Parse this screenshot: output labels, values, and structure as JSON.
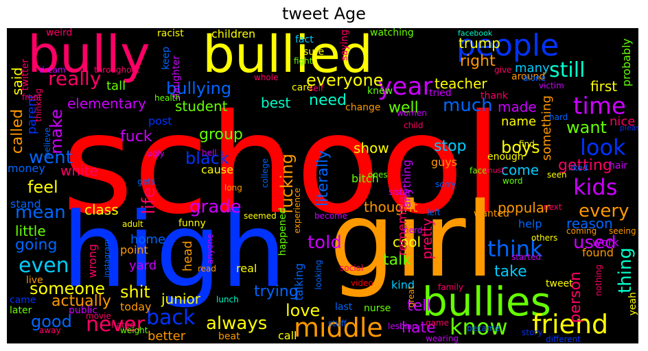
{
  "title": "tweet Age",
  "words": [
    {
      "t": "school",
      "c": "#ff0000"
    },
    {
      "t": "high",
      "c": "#0033ff"
    },
    {
      "t": "girl",
      "c": "#ff9900"
    },
    {
      "t": "bullied",
      "c": "#ffff00"
    },
    {
      "t": "bully",
      "c": "#ff0066"
    },
    {
      "t": "bullies",
      "c": "#66ff00"
    },
    {
      "t": "people",
      "c": "#0033ff"
    },
    {
      "t": "friend",
      "c": "#ffff00"
    },
    {
      "t": "middle",
      "c": "#ff9900"
    },
    {
      "t": "year",
      "c": "#cc00ff"
    },
    {
      "t": "time",
      "c": "#cc00ff"
    },
    {
      "t": "know",
      "c": "#66ff00"
    },
    {
      "t": "never",
      "c": "#ff0066"
    },
    {
      "t": "back",
      "c": "#0033ff"
    },
    {
      "t": "think",
      "c": "#0066ff"
    },
    {
      "t": "kids",
      "c": "#cc00ff"
    },
    {
      "t": "look",
      "c": "#0033ff"
    },
    {
      "t": "really",
      "c": "#ff0066"
    },
    {
      "t": "still",
      "c": "#00ffcc"
    },
    {
      "t": "bullying",
      "c": "#0066ff"
    },
    {
      "t": "even",
      "c": "#00ccff"
    },
    {
      "t": "mean",
      "c": "#0066ff"
    },
    {
      "t": "grade",
      "c": "#cc00ff"
    },
    {
      "t": "told",
      "c": "#cc00ff"
    },
    {
      "t": "want",
      "c": "#66ff00"
    },
    {
      "t": "every",
      "c": "#ff9900"
    },
    {
      "t": "always",
      "c": "#ffff00"
    },
    {
      "t": "someone",
      "c": "#ffff00"
    },
    {
      "t": "good",
      "c": "#0066ff"
    },
    {
      "t": "everyone",
      "c": "#ffff00"
    },
    {
      "t": "thing",
      "c": "#00ffcc"
    },
    {
      "t": "make",
      "c": "#cc00ff"
    },
    {
      "t": "went",
      "c": "#0066ff"
    },
    {
      "t": "feel",
      "c": "#ffff00"
    },
    {
      "t": "life",
      "c": "#ff0066"
    },
    {
      "t": "used",
      "c": "#cc00ff"
    },
    {
      "t": "love",
      "c": "#ffff00"
    },
    {
      "t": "shit",
      "c": "#ffff00"
    },
    {
      "t": "hate",
      "c": "#cc00ff"
    },
    {
      "t": "much",
      "c": "#0066ff"
    },
    {
      "t": "fuck",
      "c": "#cc00ff"
    },
    {
      "t": "black",
      "c": "#0033ff"
    },
    {
      "t": "fucking",
      "c": "#ff9900"
    },
    {
      "t": "literally",
      "c": "#0066ff"
    },
    {
      "t": "stop",
      "c": "#00ccff"
    },
    {
      "t": "boys",
      "c": "#ffff00"
    },
    {
      "t": "going",
      "c": "#0066ff"
    },
    {
      "t": "actually",
      "c": "#ff9900"
    },
    {
      "t": "trying",
      "c": "#0066ff"
    },
    {
      "t": "talk",
      "c": "#66ff00"
    },
    {
      "t": "tell",
      "c": "#cc00ff"
    },
    {
      "t": "take",
      "c": "#00ccff"
    },
    {
      "t": "person",
      "c": "#ff0066"
    },
    {
      "t": "getting",
      "c": "#ff0066"
    },
    {
      "t": "need",
      "c": "#00ffcc"
    },
    {
      "t": "best",
      "c": "#00ffcc"
    },
    {
      "t": "well",
      "c": "#66ff00"
    },
    {
      "t": "made",
      "c": "#cc00ff"
    },
    {
      "t": "right",
      "c": "#ff9900"
    },
    {
      "t": "teacher",
      "c": "#ffff00"
    },
    {
      "t": "trump",
      "c": "#ffff00"
    },
    {
      "t": "first",
      "c": "#ffff00"
    },
    {
      "t": "many",
      "c": "#00ccff"
    },
    {
      "t": "student",
      "c": "#66ff00"
    },
    {
      "t": "elementary",
      "c": "#cc00ff"
    },
    {
      "t": "group",
      "c": "#66ff00"
    },
    {
      "t": "show",
      "c": "#ffff00"
    },
    {
      "t": "white",
      "c": "#ff0066"
    },
    {
      "t": "class",
      "c": "#ffff00"
    },
    {
      "t": "little",
      "c": "#66ff00"
    },
    {
      "t": "junior",
      "c": "#ffff00"
    },
    {
      "t": "better",
      "c": "#ff9900"
    },
    {
      "t": "thought",
      "c": "#ff9900"
    },
    {
      "t": "popular",
      "c": "#ff9900"
    },
    {
      "t": "cool",
      "c": "#ffff00"
    },
    {
      "t": "come",
      "c": "#00ccff"
    },
    {
      "t": "reason",
      "c": "#0066ff"
    },
    {
      "t": "called",
      "c": "#ff9900"
    },
    {
      "t": "said",
      "c": "#ffff00"
    },
    {
      "t": "parent",
      "c": "#0033ff"
    },
    {
      "t": "tall",
      "c": "#66ff00"
    },
    {
      "t": "something",
      "c": "#ff9900"
    },
    {
      "t": "name",
      "c": "#ffff00"
    },
    {
      "t": "remember",
      "c": "#ff0066"
    },
    {
      "t": "pretty",
      "c": "#ff0066"
    },
    {
      "t": "home",
      "c": "#0066ff"
    },
    {
      "t": "yard",
      "c": "#cc00ff"
    },
    {
      "t": "head",
      "c": "#ff9900"
    },
    {
      "t": "today",
      "c": "#ff9900"
    },
    {
      "t": "children",
      "c": "#ffff00"
    },
    {
      "t": "post",
      "c": "#0033ff"
    },
    {
      "t": "cause",
      "c": "#ffff00"
    },
    {
      "t": "help",
      "c": "#0066ff"
    },
    {
      "t": "work",
      "c": "#cc00ff"
    },
    {
      "t": "found",
      "c": "#ff9900"
    },
    {
      "t": "nice",
      "c": "#ff0066"
    },
    {
      "t": "probably",
      "c": "#66ff00"
    },
    {
      "t": "wrong",
      "c": "#ff0066"
    },
    {
      "t": "point",
      "c": "#ff9900"
    },
    {
      "t": "funny",
      "c": "#ffff00"
    },
    {
      "t": "bitch",
      "c": "#66ff00"
    },
    {
      "t": "guys",
      "c": "#ff9900"
    },
    {
      "t": "anything",
      "c": "#cc00ff"
    },
    {
      "t": "talking",
      "c": "#0066ff"
    },
    {
      "t": "call",
      "c": "#ffff00"
    },
    {
      "t": "kind",
      "c": "#00ccff"
    },
    {
      "t": "nurse",
      "c": "#66ff00"
    },
    {
      "t": "real",
      "c": "#ffff00"
    },
    {
      "t": "stand",
      "c": "#0066ff"
    },
    {
      "t": "money",
      "c": "#0066ff"
    },
    {
      "t": "twitter",
      "c": "#ff0066"
    },
    {
      "t": "keep",
      "c": "#0066ff"
    },
    {
      "t": "daughter",
      "c": "#cc00ff"
    },
    {
      "t": "racist",
      "c": "#ffff00"
    },
    {
      "t": "weird",
      "c": "#ff0066"
    },
    {
      "t": "watching",
      "c": "#66ff00"
    },
    {
      "t": "facebook",
      "c": "#00ffcc"
    },
    {
      "t": "fact",
      "c": "#00ccff"
    },
    {
      "t": "sure",
      "c": "#ffff00"
    },
    {
      "t": "saying",
      "c": "#ff0066"
    },
    {
      "t": "around",
      "c": "#ff9900"
    },
    {
      "t": "victim",
      "c": "#cc00ff"
    },
    {
      "t": "knew",
      "c": "#66ff00"
    },
    {
      "t": "care",
      "c": "#ffff00"
    },
    {
      "t": "thank",
      "c": "#ff0066"
    },
    {
      "t": "tried",
      "c": "#cc00ff"
    },
    {
      "t": "change",
      "c": "#ff9900"
    },
    {
      "t": "hard",
      "c": "#0066ff"
    },
    {
      "t": "women",
      "c": "#cc00ff"
    },
    {
      "t": "child",
      "c": "#ff0066"
    },
    {
      "t": "enough",
      "c": "#ffff00"
    },
    {
      "t": "find",
      "c": "#ffff00"
    },
    {
      "t": "hair",
      "c": "#cc00ff"
    },
    {
      "t": "adult",
      "c": "#ffff00"
    },
    {
      "t": "instagram",
      "c": "#0066ff"
    },
    {
      "t": "came",
      "c": "#0033ff"
    },
    {
      "t": "later",
      "c": "#66ff00"
    },
    {
      "t": "public",
      "c": "#cc00ff"
    },
    {
      "t": "live",
      "c": "#ff9900"
    },
    {
      "t": "movie",
      "c": "#ff0066"
    },
    {
      "t": "hated",
      "c": "#ff0066"
    },
    {
      "t": "weight",
      "c": "#66ff00"
    },
    {
      "t": "away",
      "c": "#ff0066"
    },
    {
      "t": "beat",
      "c": "#ff9900"
    },
    {
      "t": "lunch",
      "c": "#00ffcc"
    },
    {
      "t": "last",
      "c": "#0066ff"
    },
    {
      "t": "stuff",
      "c": "#0066ff"
    },
    {
      "t": "lesbian",
      "c": "#cc00ff"
    },
    {
      "t": "game",
      "c": "#ff0066"
    },
    {
      "t": "became",
      "c": "#0066ff"
    },
    {
      "t": "story",
      "c": "#0033ff"
    },
    {
      "t": "wearing",
      "c": "#cc00ff"
    },
    {
      "t": "different",
      "c": "#0033ff"
    },
    {
      "t": "great",
      "c": "#ff9900"
    },
    {
      "t": "family",
      "c": "#ff0066"
    },
    {
      "t": "video",
      "c": "#ff0000"
    },
    {
      "t": "tweet",
      "c": "#ffff00"
    },
    {
      "t": "yeah",
      "c": "#ffff00"
    },
    {
      "t": "dream",
      "c": "#cc00ff"
    },
    {
      "t": "throughout",
      "c": "#ff0066"
    },
    {
      "t": "thinking",
      "c": "#ff0066"
    },
    {
      "t": "front",
      "c": "#ff0066"
    },
    {
      "t": "believe",
      "c": "#0066ff"
    },
    {
      "t": "health",
      "c": "#66ff00"
    },
    {
      "t": "whole",
      "c": "#ff0066"
    },
    {
      "t": "self",
      "c": "#ff0066"
    },
    {
      "t": "fight",
      "c": "#66ff00"
    },
    {
      "t": "social",
      "c": "#ff0066"
    },
    {
      "t": "ugly",
      "c": "#cc00ff"
    },
    {
      "t": "gets",
      "c": "#0066ff"
    },
    {
      "t": "hell",
      "c": "#cc00ff"
    },
    {
      "t": "long",
      "c": "#ff9900"
    },
    {
      "t": "college",
      "c": "#0066ff"
    },
    {
      "t": "experience",
      "c": "#ff9900"
    },
    {
      "t": "ones",
      "c": "#66ff00"
    },
    {
      "t": "face",
      "c": "#66ff00"
    },
    {
      "t": "word",
      "c": "#66ff00"
    },
    {
      "t": "seen",
      "c": "#ffff00"
    },
    {
      "t": "liked",
      "c": "#0066ff"
    },
    {
      "t": "sister",
      "c": "#cc00ff"
    },
    {
      "t": "sorry",
      "c": "#0066ff"
    },
    {
      "t": "left",
      "c": "#0066ff"
    },
    {
      "t": "wanted",
      "c": "#ff9900"
    },
    {
      "t": "next",
      "c": "#ff0066"
    },
    {
      "t": "coming",
      "c": "#ff9900"
    },
    {
      "t": "seeing",
      "c": "#ff9900"
    },
    {
      "t": "others",
      "c": "#ffff00"
    },
    {
      "t": "started",
      "c": "#cc00ff"
    },
    {
      "t": "become",
      "c": "#cc00ff"
    },
    {
      "t": "seemed",
      "c": "#ffff00"
    },
    {
      "t": "happened",
      "c": "#66ff00"
    },
    {
      "t": "anyone",
      "c": "#cc00ff"
    },
    {
      "t": "nerd",
      "c": "#cc00ff"
    },
    {
      "t": "looking",
      "c": "#0066ff"
    },
    {
      "t": "read",
      "c": "#ff9900"
    },
    {
      "t": "give",
      "c": "#ff0066"
    },
    {
      "t": "alone",
      "c": "#0066ff"
    },
    {
      "t": "must",
      "c": "#ff0066"
    },
    {
      "t": "please",
      "c": "#0033ff"
    },
    {
      "t": "nothing",
      "c": "#ff0066"
    }
  ]
}
